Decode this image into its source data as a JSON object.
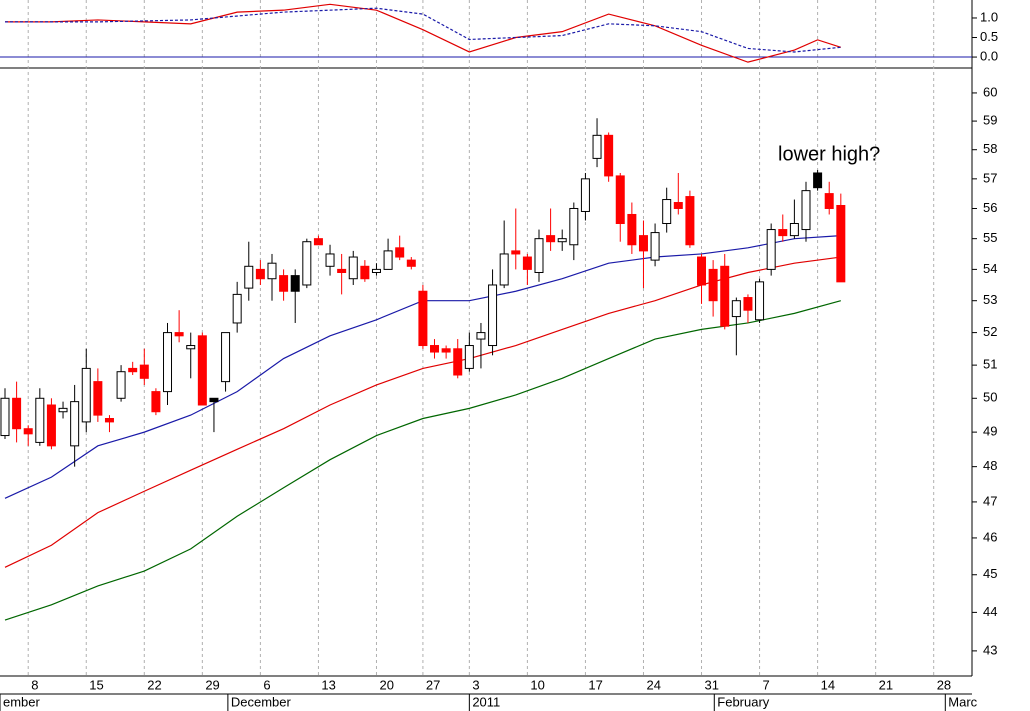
{
  "chart_data": [
    {
      "type": "line",
      "ylim": [
        -0.28,
        1.46
      ],
      "yticks": [
        {
          "value": 1,
          "label": "1.0"
        },
        0.5,
        {
          "value": 0,
          "label": "0.0"
        }
      ],
      "reference_line": 0,
      "reference_color": "#1a1aa8",
      "series": [
        {
          "color": "#e00000",
          "dash": false,
          "x": [
            0,
            4,
            8,
            12,
            16,
            20,
            24,
            28,
            32,
            36,
            40,
            44,
            48,
            52,
            56,
            60,
            64,
            68,
            70,
            72
          ],
          "values": [
            0.9,
            0.9,
            0.95,
            0.9,
            0.85,
            1.15,
            1.2,
            1.35,
            1.2,
            0.7,
            0.13,
            0.5,
            0.65,
            1.1,
            0.8,
            0.3,
            -0.13,
            0.18,
            0.44,
            0.25
          ]
        },
        {
          "color": "#1a1aa8",
          "dash": true,
          "x": [
            0,
            8,
            16,
            24,
            32,
            36,
            40,
            48,
            52,
            56,
            60,
            64,
            68,
            72
          ],
          "values": [
            0.9,
            0.9,
            0.95,
            1.15,
            1.25,
            1.1,
            0.45,
            0.55,
            0.85,
            0.8,
            0.65,
            0.22,
            0.13,
            0.25
          ]
        }
      ]
    },
    {
      "type": "candlestick",
      "log": true,
      "ylim": [
        42.36,
        60.9
      ],
      "yticks": [
        43,
        44,
        45,
        46,
        47,
        48,
        49,
        50,
        51,
        52,
        53,
        54,
        55,
        56,
        57,
        58,
        59,
        60
      ],
      "xlim": [
        -0.43,
        83.3
      ],
      "xticks": [
        {
          "value": 2,
          "label": "8"
        },
        {
          "value": 7,
          "label": "15"
        },
        {
          "value": 12,
          "label": "22"
        },
        {
          "value": 17,
          "label": "29"
        },
        {
          "value": 22,
          "label": "6"
        },
        {
          "value": 27,
          "label": "13"
        },
        {
          "value": 32,
          "label": "20"
        },
        {
          "value": 36,
          "label": "27"
        },
        {
          "value": 40,
          "label": "3"
        },
        {
          "value": 45,
          "label": "10"
        },
        {
          "value": 50,
          "label": "17"
        },
        {
          "value": 55,
          "label": "24"
        },
        {
          "value": 60,
          "label": "31"
        },
        {
          "value": 65,
          "label": "7"
        },
        {
          "value": 70,
          "label": "14"
        },
        {
          "value": 75,
          "label": "21"
        },
        {
          "value": 80,
          "label": "28"
        }
      ],
      "month_ticks": [
        {
          "value": -0.43,
          "label": "ember"
        },
        {
          "value": 19.2,
          "label": "December"
        },
        {
          "value": 40,
          "label": "2011"
        },
        {
          "value": 61.1,
          "label": "February"
        },
        {
          "value": 81,
          "label": "Marc"
        }
      ],
      "grid": true,
      "open": [
        48.9,
        50.0,
        49.1,
        48.7,
        49.8,
        49.6,
        48.6,
        49.3,
        50.5,
        49.4,
        50.0,
        50.9,
        51.0,
        50.2,
        50.2,
        52.0,
        51.5,
        51.9,
        49.9,
        50.5,
        52.3,
        53.4,
        54.0,
        53.7,
        53.8,
        53.3,
        53.5,
        55.0,
        54.1,
        54.0,
        53.7,
        54.1,
        53.9,
        54.0,
        54.7,
        54.3,
        53.3,
        51.6,
        51.5,
        51.5,
        50.9,
        51.8,
        51.6,
        53.5,
        54.6,
        54.4,
        53.9,
        55.1,
        54.9,
        54.8,
        55.9,
        57.7,
        58.5,
        57.1,
        55.8,
        55.1,
        54.3,
        55.5,
        56.2,
        56.4,
        54.4,
        54.0,
        54.1,
        52.5,
        53.1,
        52.4,
        54.0,
        55.3,
        55.1,
        55.3,
        56.7,
        56.5,
        56.1
      ],
      "high": [
        50.3,
        50.5,
        49.2,
        50.3,
        50.0,
        49.9,
        50.4,
        51.5,
        50.9,
        49.5,
        51.0,
        51.1,
        51.5,
        50.3,
        52.3,
        52.7,
        52.0,
        52.0,
        50.0,
        52.0,
        53.6,
        54.9,
        54.3,
        54.5,
        54.0,
        54.0,
        55.0,
        55.1,
        54.8,
        54.5,
        54.6,
        54.3,
        54.2,
        55.0,
        55.1,
        54.4,
        53.5,
        51.8,
        51.6,
        51.8,
        52.0,
        52.3,
        54.0,
        55.6,
        56.0,
        54.5,
        55.3,
        56.0,
        55.3,
        56.2,
        57.2,
        59.1,
        58.6,
        57.2,
        56.2,
        55.6,
        55.5,
        56.7,
        57.2,
        56.6,
        54.5,
        54.3,
        54.5,
        53.1,
        53.2,
        53.7,
        55.5,
        55.8,
        56.3,
        56.9,
        57.3,
        56.9,
        56.5
      ],
      "low": [
        48.8,
        48.7,
        48.6,
        48.6,
        48.5,
        49.4,
        48.0,
        49.0,
        49.3,
        49.0,
        49.9,
        50.7,
        50.4,
        49.5,
        49.8,
        51.7,
        50.6,
        49.8,
        49.0,
        50.2,
        52.0,
        53.0,
        53.5,
        53.0,
        53.0,
        52.3,
        53.4,
        54.8,
        53.8,
        53.2,
        53.5,
        53.6,
        53.8,
        54.0,
        54.3,
        54.0,
        51.5,
        51.2,
        51.2,
        50.6,
        50.8,
        50.9,
        51.3,
        53.4,
        54.0,
        53.5,
        53.6,
        54.6,
        54.6,
        54.3,
        55.6,
        57.4,
        56.9,
        54.9,
        54.5,
        53.4,
        54.1,
        55.2,
        55.8,
        54.7,
        52.9,
        52.5,
        52.1,
        51.3,
        52.3,
        52.3,
        53.8,
        54.9,
        55.0,
        54.9,
        56.6,
        55.8,
        53.6
      ],
      "close": [
        50.0,
        49.1,
        48.95,
        50.0,
        48.6,
        49.7,
        49.9,
        50.9,
        49.5,
        49.3,
        50.8,
        50.8,
        50.6,
        49.6,
        52.0,
        51.9,
        51.6,
        49.8,
        50.0,
        52.0,
        53.2,
        54.1,
        53.7,
        54.2,
        53.3,
        53.8,
        54.9,
        54.8,
        54.5,
        53.9,
        54.4,
        53.7,
        54.0,
        54.6,
        54.4,
        54.1,
        51.6,
        51.4,
        51.4,
        50.7,
        51.6,
        52.0,
        53.5,
        54.5,
        54.5,
        54.0,
        55.0,
        54.9,
        55.0,
        56.0,
        57.0,
        58.5,
        57.1,
        55.5,
        54.8,
        54.6,
        55.2,
        56.3,
        56.0,
        54.8,
        53.5,
        53.0,
        52.2,
        53.0,
        52.7,
        53.6,
        55.3,
        55.1,
        55.5,
        56.6,
        57.2,
        56.0,
        53.6
      ],
      "candle_colors": [
        "#fff",
        "#f00",
        "#f00",
        "#fff",
        "#f00",
        "#fff",
        "#fff",
        "#fff",
        "#f00",
        "#f00",
        "#fff",
        "#f00",
        "#f00",
        "#f00",
        "#fff",
        "#f00",
        "#fff",
        "#f00",
        "#000",
        "#fff",
        "#fff",
        "#fff",
        "#f00",
        "#fff",
        "#f00",
        "#000",
        "#fff",
        "#f00",
        "#fff",
        "#f00",
        "#fff",
        "#f00",
        "#fff",
        "#fff",
        "#f00",
        "#f00",
        "#f00",
        "#f00",
        "#f00",
        "#f00",
        "#fff",
        "#fff",
        "#fff",
        "#fff",
        "#f00",
        "#f00",
        "#fff",
        "#f00",
        "#fff",
        "#fff",
        "#fff",
        "#fff",
        "#f00",
        "#f00",
        "#f00",
        "#f00",
        "#fff",
        "#fff",
        "#f00",
        "#f00",
        "#f00",
        "#f00",
        "#f00",
        "#fff",
        "#f00",
        "#fff",
        "#fff",
        "#f00",
        "#fff",
        "#fff",
        "#000",
        "#f00",
        "#f00"
      ],
      "series": [
        {
          "color": "#1a1aa8",
          "x": [
            0,
            4,
            8,
            12,
            16,
            20,
            24,
            28,
            32,
            36,
            40,
            44,
            48,
            52,
            56,
            60,
            64,
            68,
            72
          ],
          "values": [
            47.1,
            47.7,
            48.6,
            49.0,
            49.5,
            50.2,
            51.2,
            51.9,
            52.4,
            53.0,
            53.0,
            53.3,
            53.7,
            54.2,
            54.4,
            54.5,
            54.7,
            55.0,
            55.1
          ]
        },
        {
          "color": "#e00000",
          "x": [
            0,
            4,
            8,
            12,
            16,
            20,
            24,
            28,
            32,
            36,
            40,
            44,
            48,
            52,
            56,
            60,
            64,
            68,
            72
          ],
          "values": [
            45.2,
            45.8,
            46.7,
            47.3,
            47.9,
            48.5,
            49.1,
            49.8,
            50.4,
            50.9,
            51.2,
            51.6,
            52.1,
            52.6,
            53.0,
            53.5,
            53.9,
            54.2,
            54.4
          ]
        },
        {
          "color": "#006600",
          "x": [
            0,
            4,
            8,
            12,
            16,
            20,
            24,
            28,
            32,
            36,
            40,
            44,
            48,
            52,
            56,
            60,
            64,
            68,
            72
          ],
          "values": [
            43.8,
            44.2,
            44.7,
            45.1,
            45.7,
            46.6,
            47.4,
            48.2,
            48.9,
            49.4,
            49.7,
            50.1,
            50.6,
            51.2,
            51.8,
            52.1,
            52.3,
            52.6,
            53.0
          ]
        }
      ],
      "annotation": "lower high?",
      "annotation_color": "#1a1ad0"
    }
  ]
}
